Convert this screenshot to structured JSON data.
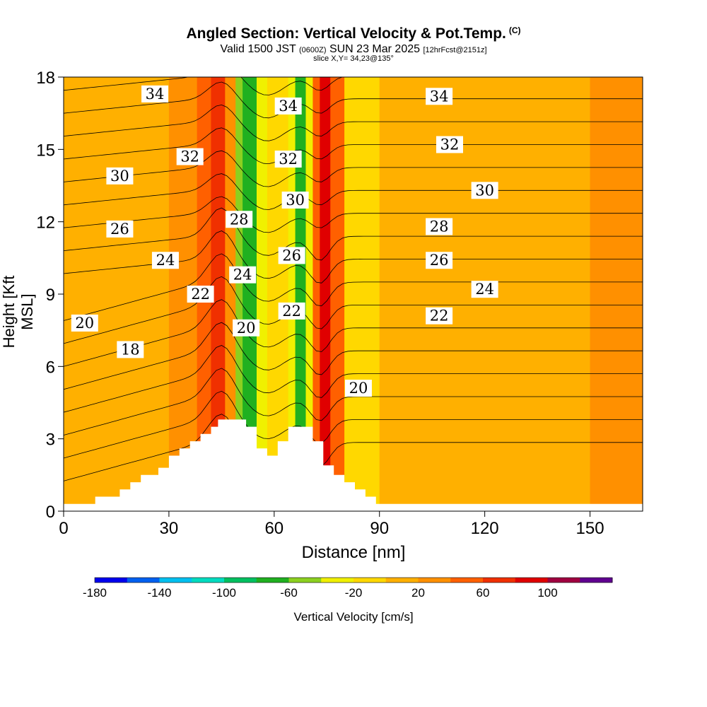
{
  "header": {
    "title": "Angled Section: Vertical Velocity & Pot.Temp.",
    "title_tag": "(C)",
    "valid_prefix": "Valid 1500 JST",
    "valid_utc": "(0600Z)",
    "valid_date": "SUN 23 Mar 2025",
    "forecast": "[12hrFcst@2151z]",
    "slice": "slice X,Y= 34,23@135°"
  },
  "chart_data": {
    "type": "heatmap",
    "title": "Angled Section: Vertical Velocity & Pot.Temp.",
    "xlabel": "Distance [nm]",
    "ylabel": "Height [Kft MSL]",
    "xlim": [
      0,
      165
    ],
    "ylim": [
      0,
      18
    ],
    "x_ticks": [
      0,
      30,
      60,
      90,
      120,
      150
    ],
    "y_ticks": [
      0,
      3,
      6,
      9,
      12,
      15,
      18
    ],
    "colorbar": {
      "label": "Vertical Velocity [cm/s]",
      "tick_labels": [
        -180,
        -140,
        -100,
        -60,
        -20,
        20,
        60,
        100
      ],
      "bins": [
        -180,
        -160,
        -140,
        -120,
        -100,
        -80,
        -60,
        -40,
        -20,
        0,
        20,
        40,
        60,
        80,
        100,
        120
      ],
      "colors": [
        "#0000ee",
        "#0060f0",
        "#00c0f0",
        "#00dcc0",
        "#00c060",
        "#20b020",
        "#8cd020",
        "#f0f000",
        "#ffd800",
        "#ffb000",
        "#ff9000",
        "#ff6000",
        "#f03000",
        "#e00000",
        "#a00040",
        "#600090"
      ]
    },
    "velocity_bands": [
      {
        "x0": 0,
        "x1": 30,
        "value": 15
      },
      {
        "x0": 30,
        "x1": 38,
        "value": 30
      },
      {
        "x0": 38,
        "x1": 42,
        "value": 55
      },
      {
        "x0": 42,
        "x1": 46,
        "value": 75
      },
      {
        "x0": 46,
        "x1": 49,
        "value": 35
      },
      {
        "x0": 49,
        "x1": 51,
        "value": -45
      },
      {
        "x0": 51,
        "x1": 55,
        "value": -75
      },
      {
        "x0": 55,
        "x1": 58,
        "value": -30
      },
      {
        "x0": 58,
        "x1": 64,
        "value": -5
      },
      {
        "x0": 64,
        "x1": 66,
        "value": -40
      },
      {
        "x0": 66,
        "x1": 69,
        "value": -75
      },
      {
        "x0": 69,
        "x1": 71,
        "value": -30
      },
      {
        "x0": 71,
        "x1": 73,
        "value": 50
      },
      {
        "x0": 73,
        "x1": 76,
        "value": 85
      },
      {
        "x0": 76,
        "x1": 80,
        "value": 40
      },
      {
        "x0": 80,
        "x1": 90,
        "value": -5
      },
      {
        "x0": 90,
        "x1": 120,
        "value": 0
      },
      {
        "x0": 120,
        "x1": 135,
        "value": 15
      },
      {
        "x0": 135,
        "x1": 150,
        "value": 5
      },
      {
        "x0": 150,
        "x1": 165,
        "value": 20
      }
    ],
    "terrain": [
      [
        0,
        0.3
      ],
      [
        9,
        0.3
      ],
      [
        9,
        0.6
      ],
      [
        16,
        0.6
      ],
      [
        16,
        0.9
      ],
      [
        19,
        0.9
      ],
      [
        19,
        1.2
      ],
      [
        22,
        1.2
      ],
      [
        22,
        1.5
      ],
      [
        27,
        1.5
      ],
      [
        27,
        1.8
      ],
      [
        30,
        1.8
      ],
      [
        30,
        2.3
      ],
      [
        33,
        2.3
      ],
      [
        33,
        2.6
      ],
      [
        36,
        2.6
      ],
      [
        36,
        2.9
      ],
      [
        39,
        2.9
      ],
      [
        39,
        3.2
      ],
      [
        42,
        3.2
      ],
      [
        42,
        3.5
      ],
      [
        44,
        3.5
      ],
      [
        44,
        3.8
      ],
      [
        52,
        3.8
      ],
      [
        52,
        3.5
      ],
      [
        55,
        3.5
      ],
      [
        55,
        2.6
      ],
      [
        58,
        2.6
      ],
      [
        58,
        2.3
      ],
      [
        61,
        2.3
      ],
      [
        61,
        2.9
      ],
      [
        64,
        2.9
      ],
      [
        64,
        3.5
      ],
      [
        71,
        3.5
      ],
      [
        71,
        2.9
      ],
      [
        74,
        2.9
      ],
      [
        74,
        1.9
      ],
      [
        77,
        1.9
      ],
      [
        77,
        1.5
      ],
      [
        80,
        1.5
      ],
      [
        80,
        1.2
      ],
      [
        83,
        1.2
      ],
      [
        83,
        0.9
      ],
      [
        86,
        0.9
      ],
      [
        86,
        0.6
      ],
      [
        89,
        0.6
      ],
      [
        89,
        0.3
      ],
      [
        165,
        0.3
      ]
    ],
    "isentropes": [
      {
        "value": 18,
        "label_at": [
          19,
          6.7
        ]
      },
      {
        "value": 20,
        "label_at": [
          6,
          7.8
        ]
      },
      {
        "value": 20,
        "label_at": [
          52,
          7.6
        ]
      },
      {
        "value": 20,
        "label_at": [
          84,
          5.1
        ]
      },
      {
        "value": 22,
        "label_at": [
          39,
          9.0
        ]
      },
      {
        "value": 22,
        "label_at": [
          65,
          8.3
        ]
      },
      {
        "value": 22,
        "label_at": [
          107,
          8.1
        ]
      },
      {
        "value": 24,
        "label_at": [
          29,
          10.4
        ]
      },
      {
        "value": 24,
        "label_at": [
          51,
          9.8
        ]
      },
      {
        "value": 24,
        "label_at": [
          120,
          9.2
        ]
      },
      {
        "value": 26,
        "label_at": [
          16,
          11.7
        ]
      },
      {
        "value": 26,
        "label_at": [
          65,
          10.6
        ]
      },
      {
        "value": 26,
        "label_at": [
          107,
          10.4
        ]
      },
      {
        "value": 28,
        "label_at": [
          50,
          12.1
        ]
      },
      {
        "value": 28,
        "label_at": [
          107,
          11.8
        ]
      },
      {
        "value": 30,
        "label_at": [
          16,
          13.9
        ]
      },
      {
        "value": 30,
        "label_at": [
          66,
          12.9
        ]
      },
      {
        "value": 30,
        "label_at": [
          120,
          13.3
        ]
      },
      {
        "value": 32,
        "label_at": [
          36,
          14.7
        ]
      },
      {
        "value": 32,
        "label_at": [
          64,
          14.6
        ]
      },
      {
        "value": 32,
        "label_at": [
          110,
          15.2
        ]
      },
      {
        "value": 34,
        "label_at": [
          26,
          17.3
        ]
      },
      {
        "value": 34,
        "label_at": [
          64,
          16.8
        ]
      },
      {
        "value": 34,
        "label_at": [
          107,
          17.2
        ]
      }
    ]
  }
}
